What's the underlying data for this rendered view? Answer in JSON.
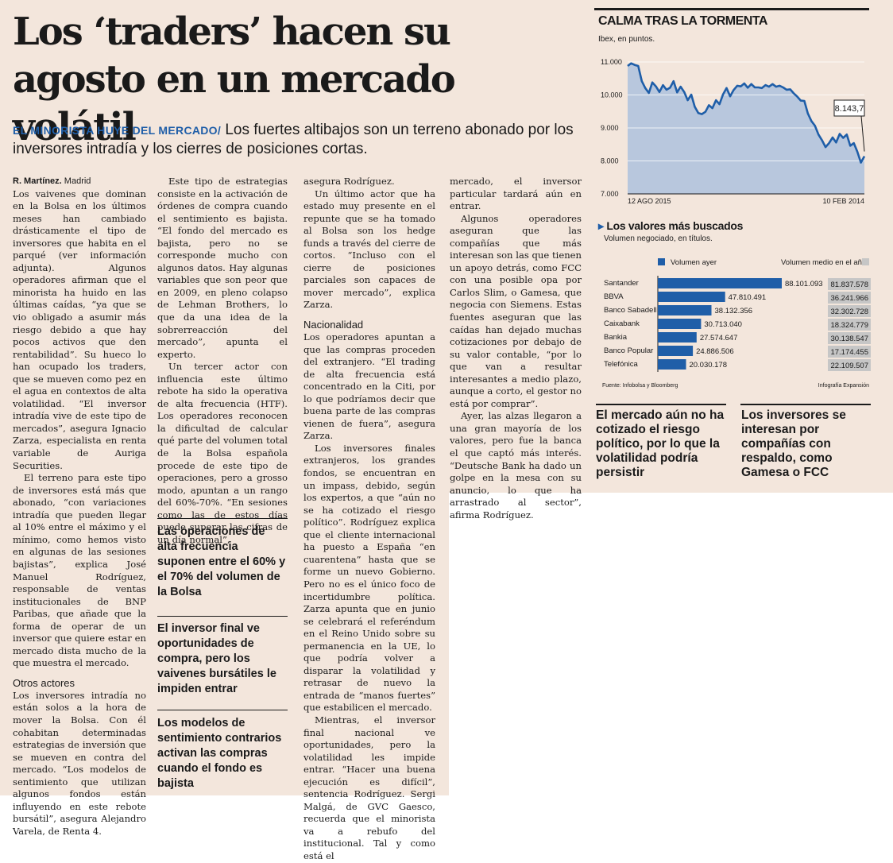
{
  "headline": "Los ‘traders’ hacen su agosto en un mercado volátil",
  "kicker": {
    "section": "EL MINORISTA HUYE DEL MERCADO/",
    "text": " Los fuertes altibajos son un terreno abonado por los inversores intradía y los cierres de posiciones cortas."
  },
  "byline": {
    "author": "R. Martínez.",
    "place": " Madrid"
  },
  "col1": [
    "Los vaivenes que dominan en la Bolsa en los últimos meses han cambiado drásticamente el tipo de inversores que habita en el parqué (ver información adjunta). Algunos operadores afirman que el minorista ha huido en las últimas caídas, “ya que se vio obligado a asumir más riesgo debido a que hay pocos activos que den rentabilidad”. Su hueco lo han ocupado los traders, que se mueven como pez en el agua en contextos de alta volatilidad. “El inversor intradía vive de este tipo de mercados”, asegura Ignacio Zarza, especialista en renta variable de Auriga Securities.",
    "El terreno para este tipo de inversores está más que abonado, “con variaciones intradía que pueden llegar al 10% entre el máximo y el mínimo, como hemos visto en algunas de las sesiones bajistas”, explica José Manuel Rodríguez, responsable de ventas institucionales de BNP Paribas, que añade que la forma de operar de un inversor que quiere estar en mercado dista mucho de la que muestra el mercado."
  ],
  "col1_heading": "Otros actores",
  "col1b": [
    "Los inversores intradía no están solos a la hora de mover la Bolsa. Con él cohabitan determinadas estrategias de inversión que se mueven en contra del mercado. “Los modelos de sentimiento que utilizan algunos fondos están influyendo en este rebote bursátil”, asegura Alejandro Varela, de Renta 4."
  ],
  "col2": [
    "Este tipo de estrategias consiste en la activación de órdenes de compra cuando el sentimiento es bajista. “El fondo del mercado es bajista, pero no se corresponde mucho con algunos datos. Hay algunas variables que son peor que en 2009, en pleno colapso de Lehman Brothers, lo que da una idea de la sobrerreacción del mercado”, apunta el experto.",
    "Un tercer actor con influencia este último rebote ha sido la operativa de alta frecuencia (HTF). Los operadores reconocen la dificultad de calcular qué parte del volumen total de la Bolsa española procede de este tipo de operaciones, pero a grosso modo, apuntan a un rango del 60%-70%. “En sesiones como las de estos días puede superar las cifras de un día normal”,"
  ],
  "pulls": [
    "Las operaciones de alta frecuencia suponen entre el 60% y el 70% del volumen de la Bolsa",
    "El inversor final ve oportunidades de compra, pero los vaivenes bursátiles le impiden entrar",
    "Los modelos de sentimiento contrarios activan las compras cuando el fondo es bajista"
  ],
  "col3": [
    "asegura Rodríguez.",
    "Un último actor que ha estado muy presente en el repunte que se ha tomado al Bolsa son los hedge funds a través del cierre de cortos. “Incluso con el cierre de posiciones parciales son capaces de mover mercado”, explica Zarza."
  ],
  "col3_heading": "Nacionalidad",
  "col3b": [
    "Los operadores apuntan a que las compras proceden del extranjero. “El trading de alta frecuencia está concentrado en la Citi, por lo que podríamos decir que buena parte de las compras vienen de fuera”, asegura Zarza.",
    "Los inversores finales extranjeros, los grandes fondos, se encuentran en un impass, debido, según los expertos, a que “aún no se ha cotizado el riesgo político”. Rodríguez explica que el cliente internacional ha puesto a España “en cuarentena” hasta que se forme un nuevo Gobierno. Pero no es el único foco de incertidumbre política. Zarza apunta que en junio se celebrará el referéndum en el Reino Unido sobre su permanencia en la UE, lo que podría volver a disparar la volatilidad y retrasar de nuevo la entrada de “manos fuertes” que estabilicen el mercado.",
    "Mientras, el inversor final nacional ve oportunidades, pero la volatilidad les impide entrar. “Hacer una buena ejecución es difícil”, sentencia Rodríguez. Sergi Malgá, de GVC Gaesco, recuerda que el minorista va a rebufo del institucional. Tal y como está el"
  ],
  "col4": [
    "mercado, el inversor particular tardará aún en entrar.",
    "Algunos operadores aseguran que las compañías que más interesan son las que tienen un apoyo detrás, como FCC con una posible opa por Carlos Slim, o Gamesa, que negocia con Siemens. Estas fuentes aseguran que las caídas han dejado muchas cotizaciones por debajo de su valor contable, “por lo que van a resultar interesantes a medio plazo, aunque a corto, el gestor no está por comprar”.",
    "Ayer, las alzas llegaron a una gran mayoría de los valores, pero fue la banca el que captó más interés. “Deutsche Bank ha dado un golpe en la mesa con su anuncio, lo que ha arrastrado al sector”, afirma Rodríguez."
  ],
  "side_pulls": [
    "El mercado aún no ha cotizado el riesgo político, por lo que la volatilidad podría persistir",
    "Los inversores se interesan por compañías con respaldo, como Gamesa o FCC"
  ],
  "chart_data": [
    {
      "type": "area",
      "title": "CALMA TRAS LA TORMENTA",
      "subtitle": "Ibex, en puntos.",
      "ylim": [
        7000,
        11000
      ],
      "yticks": [
        "11.000",
        "10.000",
        "9.000",
        "8.000",
        "7.000"
      ],
      "ytick_values": [
        11000,
        10000,
        9000,
        8000,
        7000
      ],
      "xlabels": [
        "12 AGO 2015",
        "10 FEB 2014"
      ],
      "last_label": "8.143,7",
      "series": [
        {
          "values": [
            10880,
            10960,
            10910,
            10880,
            10420,
            10210,
            10060,
            10380,
            10260,
            10090,
            10300,
            10160,
            10220,
            10420,
            10080,
            10250,
            10090,
            9840,
            10010,
            9640,
            9450,
            9420,
            9490,
            9690,
            9600,
            9840,
            9720,
            10020,
            10210,
            9960,
            10150,
            10280,
            10260,
            10350,
            10220,
            10330,
            10230,
            10230,
            10210,
            10300,
            10250,
            10330,
            10250,
            10280,
            10230,
            10160,
            10170,
            10050,
            9950,
            9830,
            9820,
            9440,
            9210,
            9070,
            8800,
            8630,
            8420,
            8540,
            8710,
            8560,
            8820,
            8700,
            8800,
            8460,
            8540,
            8280,
            7950,
            8143
          ]
        }
      ],
      "color_fill": "#b8c7dd",
      "color_line": "#1f5ea8"
    },
    {
      "type": "bar",
      "title": "Los valores más buscados",
      "subtitle": "Volumen negociado, en títulos.",
      "legend": [
        "Volumen ayer",
        "Volumen medio en el año"
      ],
      "categories": [
        "Santander",
        "BBVA",
        "Banco Sabadell",
        "Caixabank",
        "Bankia",
        "Banco Popular",
        "Telefónica"
      ],
      "values": [
        88101093,
        47810491,
        38132356,
        30713040,
        27574647,
        24886506,
        20030178
      ],
      "labels": [
        "88.101.093",
        "47.810.491",
        "38.132.356",
        "30.713.040",
        "27.574.647",
        "24.886.506",
        "20.030.178"
      ],
      "average_labels": [
        "81.837.578",
        "36.241.966",
        "32.302.728",
        "18.324.779",
        "30.138.547",
        "17.174.455",
        "22.109.507"
      ],
      "source": "Fuente: Infobolsa y Bloomberg",
      "credit": "Infografía Expansión",
      "color_bar": "#1f5ea8",
      "color_avg": "#c6c6c6"
    }
  ]
}
